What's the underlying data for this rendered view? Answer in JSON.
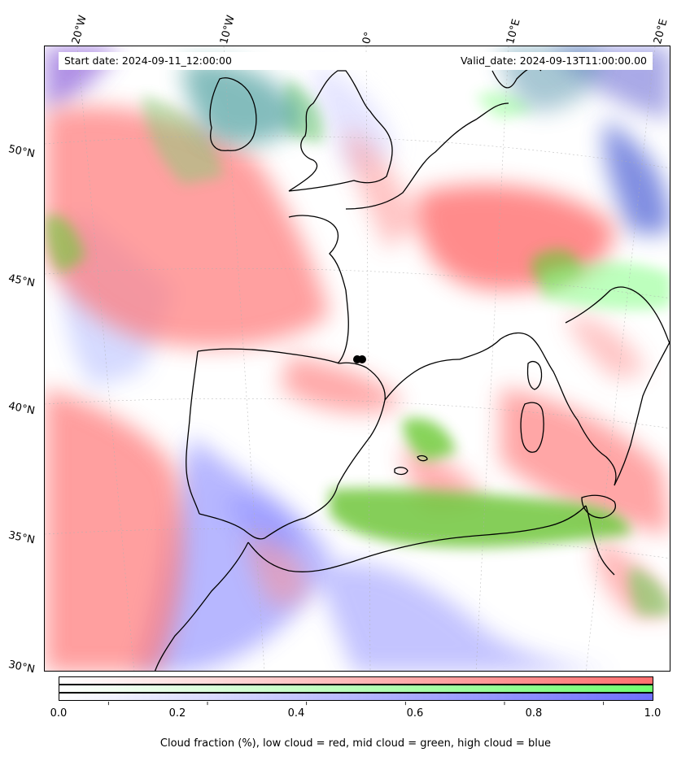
{
  "header": {
    "start_date": "Start date: 2024-09-11_12:00:00",
    "valid_date": "Valid_date: 2024-09-13T11:00:00.00"
  },
  "longitude_labels": [
    "20°W",
    "10°W",
    "0°",
    "10°E",
    "20°E"
  ],
  "latitude_labels": [
    "50°N",
    "45°N",
    "40°N",
    "35°N",
    "30°N"
  ],
  "colorbar": {
    "ticks": [
      "0.0",
      "0.2",
      "0.4",
      "0.6",
      "0.8",
      "1.0"
    ],
    "low_color": "#ff6f6f",
    "mid_color": "#6fff6f",
    "high_color": "#6f6fff",
    "caption": "Cloud fraction (%), low cloud = red, mid cloud = green, high cloud = blue"
  },
  "map": {
    "ocean_color": "#ffffff",
    "coastline_color": "#000000"
  }
}
